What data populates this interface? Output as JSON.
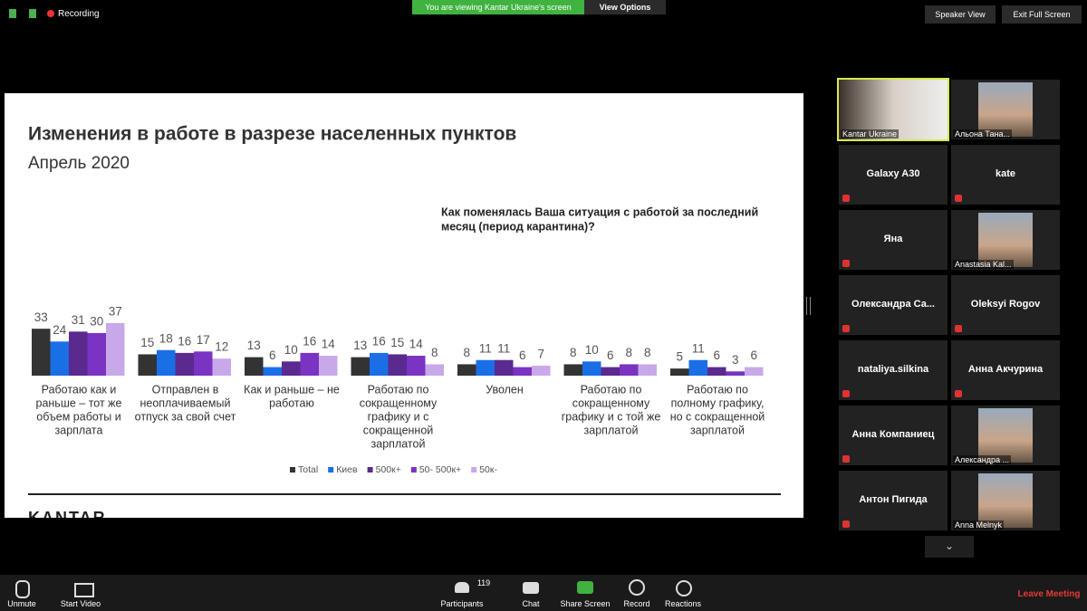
{
  "top_bar": {
    "recording": "Recording",
    "viewing": "You are viewing Kantar Ukraine's screen",
    "view_options": "View Options",
    "speaker_view": "Speaker View",
    "exit_full_screen": "Exit Full Screen"
  },
  "slide": {
    "title": "Изменения в работе в разрезе населенных пунктов",
    "subtitle": "Апрель 2020",
    "question": [
      "Как поменялась Ваша ситуация с работой за последний",
      "месяц (период карантина)?"
    ],
    "logo": "KANTAR",
    "chart": {
      "type": "bar",
      "categories": [
        [
          "Работаю как и",
          "раньше – тот же",
          "объем работы и",
          "зарплата"
        ],
        [
          "Отправлен в",
          "неоплачиваемый",
          "отпуск за свой счет"
        ],
        [
          "Как и раньше – не",
          "работаю"
        ],
        [
          "Работаю по",
          "сокращенному",
          "графику и с",
          "сокращенной",
          "зарплатой"
        ],
        [
          "Уволен"
        ],
        [
          "Работаю по",
          "сокращенному",
          "графику и с той же",
          "зарплатой"
        ],
        [
          "Работаю по",
          "полному графику,",
          "но с сокращенной",
          "зарплатой"
        ]
      ],
      "series": [
        {
          "name": "Total",
          "color": "#333333",
          "values": [
            33,
            15,
            13,
            13,
            8,
            8,
            5
          ]
        },
        {
          "name": "Киев",
          "color": "#1a6ee6",
          "values": [
            24,
            18,
            6,
            16,
            11,
            10,
            11
          ]
        },
        {
          "name": "500к+",
          "color": "#5a2a8e",
          "values": [
            31,
            16,
            10,
            15,
            11,
            6,
            6
          ]
        },
        {
          "name": "50- 500к+",
          "color": "#7b33c2",
          "values": [
            30,
            17,
            16,
            14,
            6,
            8,
            3
          ]
        },
        {
          "name": "50к-",
          "color": "#c9a8ea",
          "values": [
            37,
            12,
            14,
            8,
            7,
            8,
            6
          ]
        }
      ]
    }
  },
  "participants": [
    {
      "name": "Kantar Ukraine",
      "video": true
    },
    {
      "name": "Альона Тана...",
      "video": true
    },
    {
      "name": "Galaxy A30",
      "video": false
    },
    {
      "name": "kate",
      "video": false
    },
    {
      "name": "Яна",
      "video": false
    },
    {
      "name": "Anastasia Kal...",
      "video": true
    },
    {
      "name": "Олександра  Са...",
      "video": false
    },
    {
      "name": "Oleksyi Rogov",
      "video": false
    },
    {
      "name": "nataliya.silkina",
      "video": false
    },
    {
      "name": "Анна Акчурина",
      "video": false
    },
    {
      "name": "Анна Компаниец",
      "video": false
    },
    {
      "name": "Александра ...",
      "video": true
    },
    {
      "name": "Антон Пигида",
      "video": false
    },
    {
      "name": "Anna Melnyk",
      "video": true
    }
  ],
  "toolbar": {
    "unmute": "Unmute",
    "start_video": "Start Video",
    "participants": "Participants",
    "participant_count": "119",
    "chat": "Chat",
    "share_screen": "Share Screen",
    "record": "Record",
    "reactions": "Reactions",
    "leave": "Leave Meeting"
  }
}
